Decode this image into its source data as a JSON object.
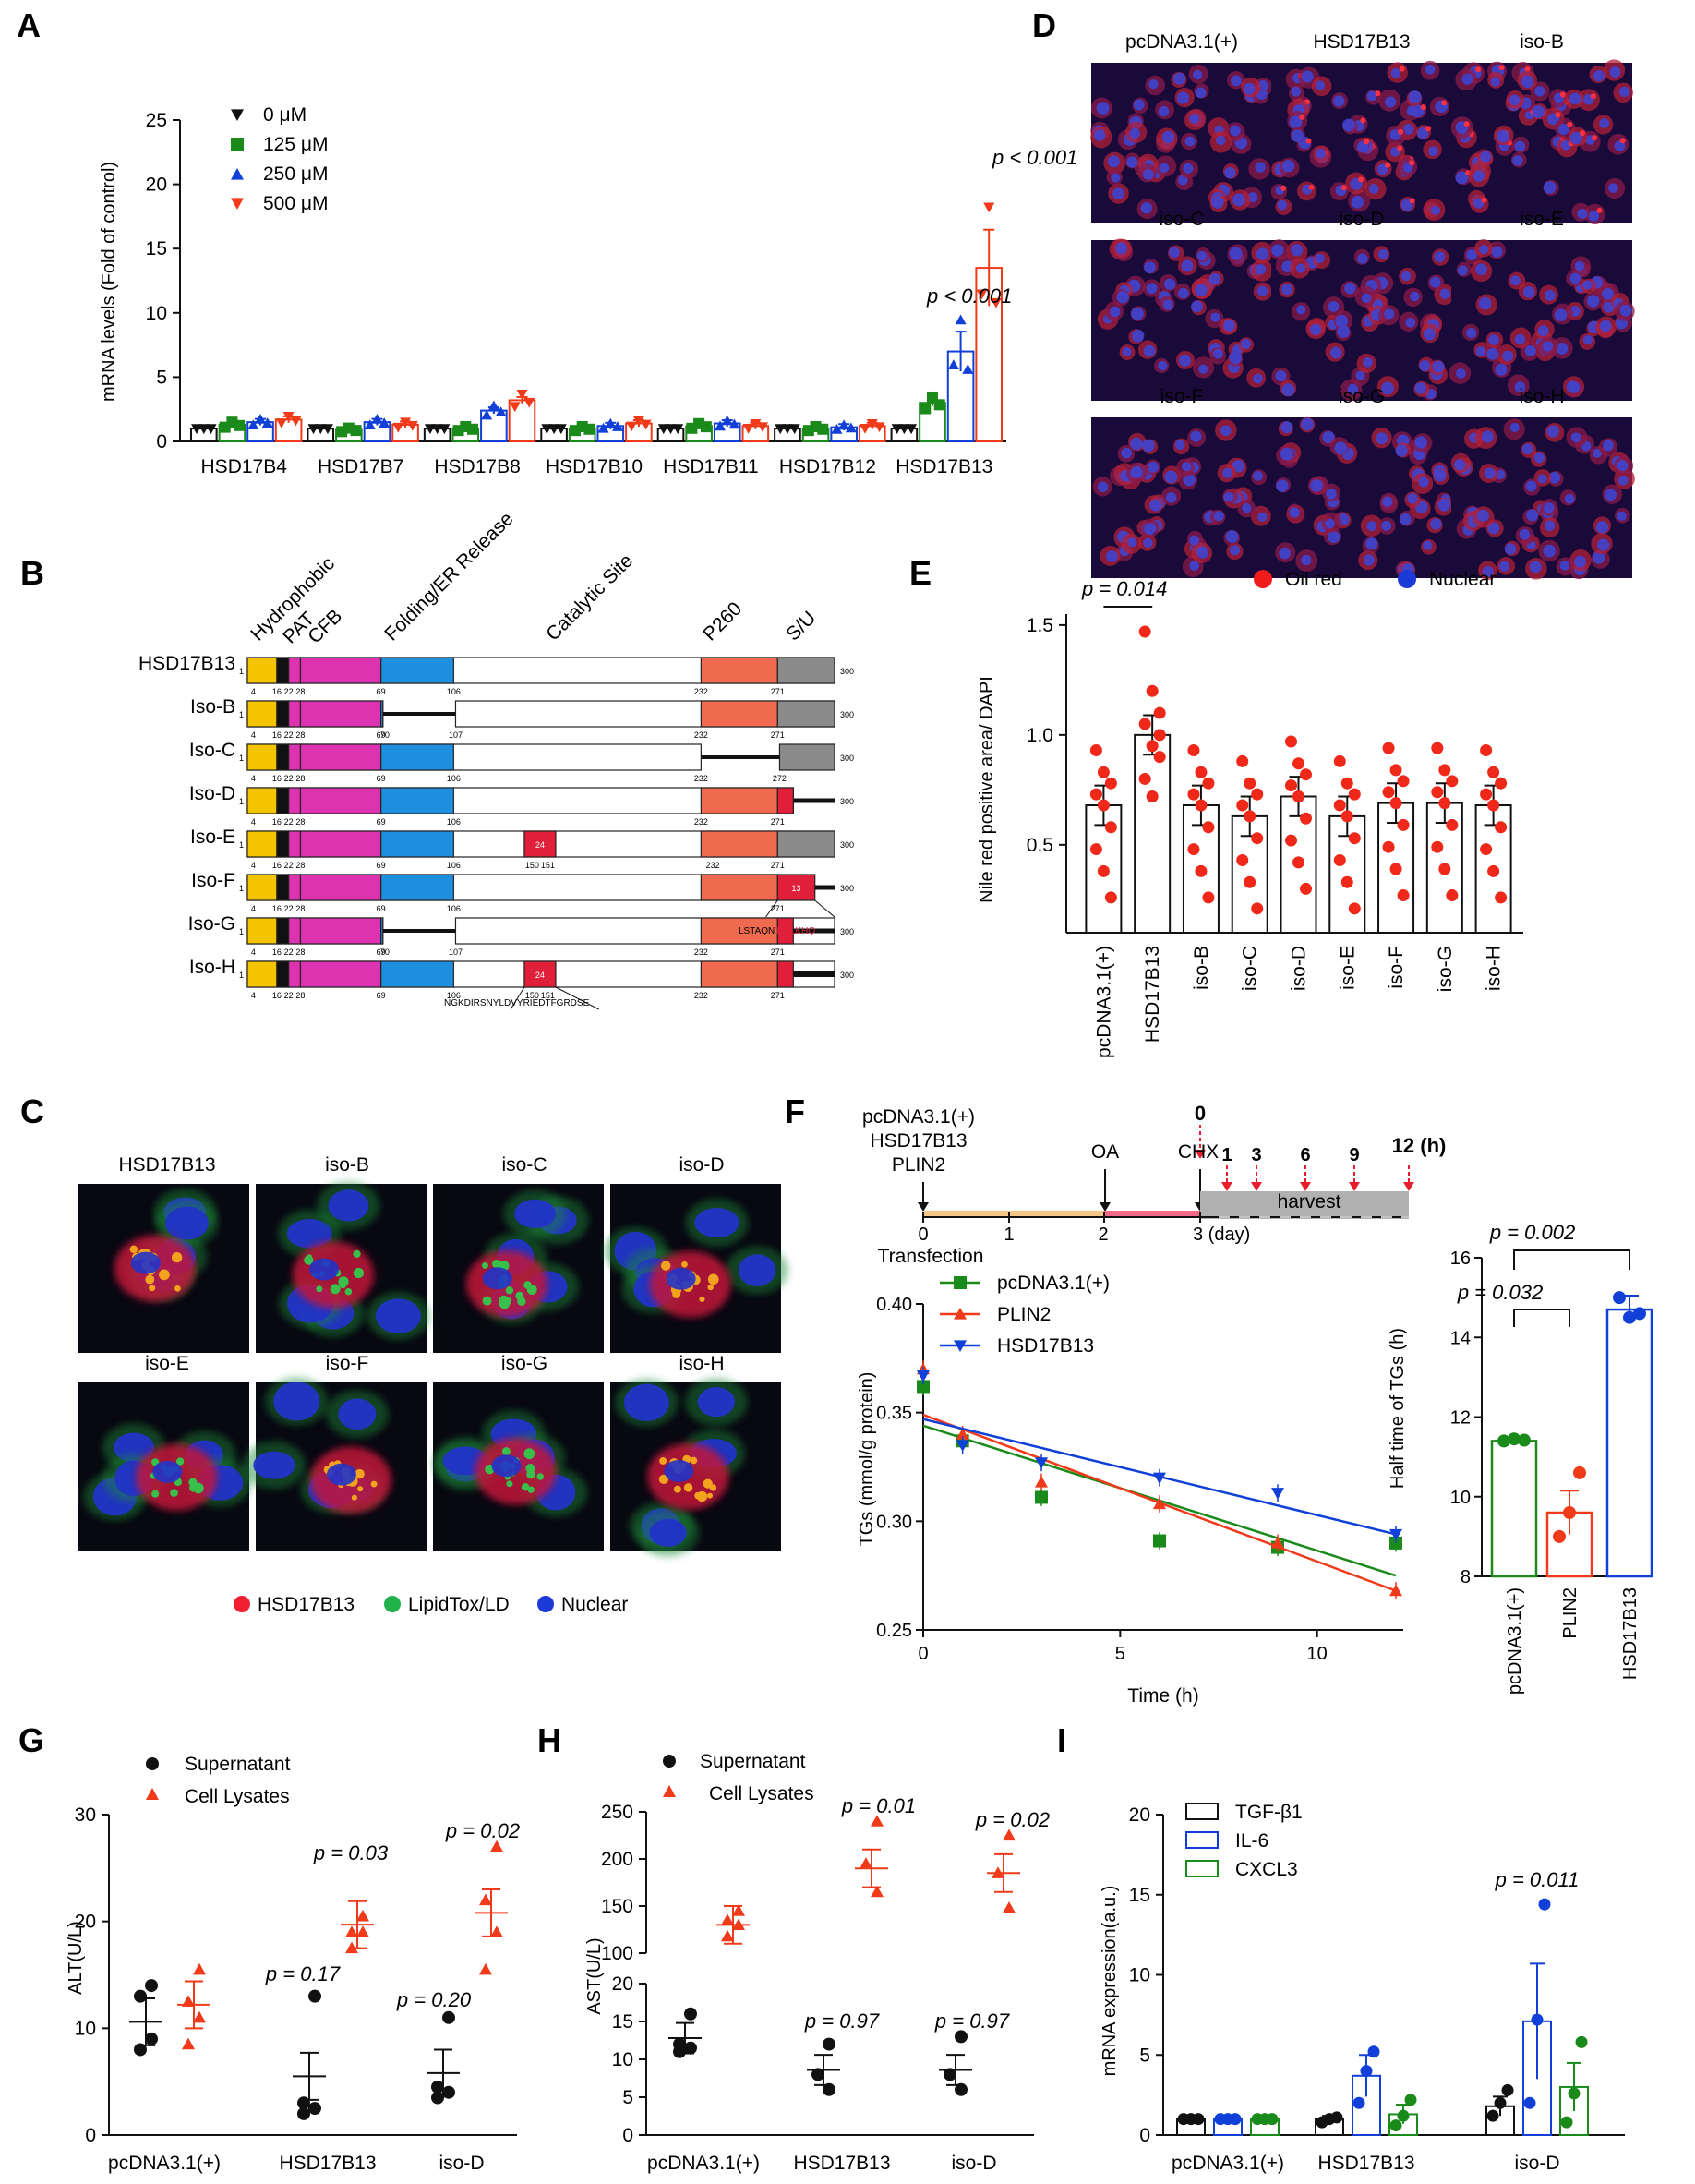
{
  "panel_letters": [
    "A",
    "B",
    "C",
    "D",
    "E",
    "F",
    "G",
    "H",
    "I"
  ],
  "colors": {
    "black": "#111111",
    "green": "#1a8a1a",
    "blue": "#1040d8",
    "red": "#f03a1a",
    "micro_bg": "#12061e",
    "cell_red": "#c0243a",
    "cell_blue": "#2336c8",
    "lipid_green": "#27b24a",
    "orange": "#f39a1e"
  },
  "panelA": {
    "chart_data": {
      "type": "bar",
      "ylabel": "mRNA levels (Fold of control)",
      "ylim": [
        0,
        25
      ],
      "yticks": [
        "0",
        "5",
        "10",
        "15",
        "20",
        "25"
      ],
      "categories": [
        "HSD17B4",
        "HSD17B7",
        "HSD17B8",
        "HSD17B10",
        "HSD17B11",
        "HSD17B12",
        "HSD17B13"
      ],
      "series": [
        {
          "name": "0 μM",
          "values": [
            1,
            1,
            1,
            1,
            1,
            1,
            1
          ]
        },
        {
          "name": "125 μM",
          "values": [
            1.3,
            0.9,
            1.0,
            1.0,
            1.2,
            1.0,
            3.0
          ]
        },
        {
          "name": "250 μM",
          "values": [
            1.5,
            1.5,
            2.4,
            1.2,
            1.4,
            1.1,
            7.0
          ]
        },
        {
          "name": "500 μM",
          "values": [
            1.7,
            1.3,
            3.2,
            1.4,
            1.2,
            1.2,
            13.5
          ]
        }
      ],
      "annotations": [
        "p < 0.001",
        "p < 0.001"
      ]
    }
  },
  "panelB": {
    "header": [
      "Hydrophobic",
      "PAT",
      "CFB",
      "Folding/ER Release",
      "Catalytic Site",
      "P260",
      "S/U"
    ],
    "rows": [
      {
        "name": "HSD17B13",
        "nums": [
          "4",
          "16",
          "22",
          "28",
          "69",
          "106",
          "232",
          "271",
          "300"
        ]
      },
      {
        "name": "Iso-B",
        "nums": [
          "4",
          "16",
          "22",
          "28",
          "69",
          "70",
          "107",
          "232",
          "271",
          "300"
        ]
      },
      {
        "name": "Iso-C",
        "nums": [
          "4",
          "16",
          "22",
          "28",
          "69",
          "106",
          "232",
          "272",
          "300"
        ]
      },
      {
        "name": "Iso-D",
        "nums": [
          "4",
          "16",
          "22",
          "28",
          "69",
          "106",
          "232",
          "271",
          "300"
        ]
      },
      {
        "name": "Iso-E",
        "nums": [
          "4",
          "16",
          "22",
          "28",
          "69",
          "106",
          "150",
          "151",
          "232",
          "271",
          "300"
        ]
      },
      {
        "name": "Iso-F",
        "nums": [
          "4",
          "16",
          "22",
          "28",
          "69",
          "106",
          "271",
          "300"
        ]
      },
      {
        "name": "Iso-G",
        "nums": [
          "4",
          "16",
          "22",
          "28",
          "69",
          "70",
          "107",
          "232",
          "271",
          "300"
        ]
      },
      {
        "name": "Iso-H",
        "nums": [
          "4",
          "16",
          "22",
          "28",
          "69",
          "106",
          "150",
          "151",
          "232",
          "271",
          "300"
        ]
      }
    ],
    "isoF_seq_black": "LSTAQN",
    "isoF_seq_red": "TQILKHQ",
    "isoH_seq": "NGKDIRSNYLDVYRIEDTFGRDSE",
    "box_e": "24",
    "box_f": "13",
    "one": "1"
  },
  "panelC": {
    "images_top": [
      "HSD17B13",
      "iso-B",
      "iso-C",
      "iso-D"
    ],
    "images_bottom": [
      "iso-E",
      "iso-F",
      "iso-G",
      "iso-H"
    ],
    "legend": [
      "HSD17B13",
      "LipidTox/LD",
      "Nuclear"
    ]
  },
  "panelD": {
    "images": [
      "pcDNA3.1(+)",
      "HSD17B13",
      "iso-B",
      "iso-C",
      "iso-D",
      "iso-E",
      "iso-F",
      "iso-G",
      "iso-H"
    ],
    "legend": [
      "Oil red",
      "Nuclear"
    ]
  },
  "panelE": {
    "chart_data": {
      "type": "bar",
      "ylabel": "Nile red positive area/ DAPI",
      "ylim": [
        0.1,
        1.55
      ],
      "yticks": [
        "0.5",
        "1.0",
        "1.5"
      ],
      "categories": [
        "pcDNA3.1(+)",
        "HSD17B13",
        "iso-B",
        "iso-C",
        "iso-D",
        "iso-E",
        "iso-F",
        "iso-G",
        "iso-H"
      ],
      "values": [
        0.68,
        1.0,
        0.68,
        0.63,
        0.72,
        0.63,
        0.69,
        0.69,
        0.68
      ],
      "annotation": "p = 0.014"
    }
  },
  "panelF": {
    "timeline": {
      "transfections": [
        "pcDNA3.1(+)",
        "HSD17B13",
        "PLIN2"
      ],
      "labels": {
        "oa": "OA",
        "chx": "CHX",
        "zero": "0",
        "harvest": "harvest",
        "transfection": "Transfection",
        "day": "3 (day)",
        "unit": "12 (h)"
      },
      "day_ticks": [
        "0",
        "1",
        "2"
      ],
      "harvest_times": [
        "1",
        "3",
        "6",
        "9"
      ]
    },
    "chart_data": [
      {
        "type": "line",
        "xlabel": "Time (h)",
        "ylabel": "TGs (mmol/g protein)",
        "xlim": [
          0,
          12
        ],
        "ylim": [
          0.25,
          0.4
        ],
        "xticks": [
          "0",
          "5",
          "10"
        ],
        "yticks": [
          "0.25",
          "0.30",
          "0.35",
          "0.40"
        ],
        "series": [
          {
            "name": "pcDNA3.1(+)",
            "x": [
              0,
              1,
              3,
              6,
              9,
              12
            ],
            "y": [
              0.362,
              0.337,
              0.311,
              0.291,
              0.288,
              0.29
            ]
          },
          {
            "name": "PLIN2",
            "x": [
              0,
              1,
              3,
              6,
              9,
              12
            ],
            "y": [
              0.37,
              0.34,
              0.318,
              0.308,
              0.29,
              0.268
            ]
          },
          {
            "name": "HSD17B13",
            "x": [
              0,
              1,
              3,
              6,
              9,
              12
            ],
            "y": [
              0.367,
              0.335,
              0.327,
              0.32,
              0.313,
              0.294
            ]
          }
        ]
      },
      {
        "type": "bar",
        "ylabel": "Half time of TGs (h)",
        "ylim": [
          8,
          16
        ],
        "yticks": [
          "8",
          "10",
          "12",
          "14",
          "16"
        ],
        "categories": [
          "pcDNA3.1(+)",
          "PLIN2",
          "HSD17B13"
        ],
        "values": [
          11.4,
          9.6,
          14.7
        ],
        "annotations": [
          "p = 0.032",
          "p = 0.002"
        ]
      }
    ]
  },
  "panelG": {
    "chart_data": {
      "type": "scatter",
      "ylabel": "ALT(U/L)",
      "ylim": [
        0,
        30
      ],
      "yticks": [
        "0",
        "10",
        "20",
        "30"
      ],
      "categories": [
        "pcDNA3.1(+)",
        "HSD17B13",
        "iso-D"
      ],
      "series": [
        {
          "name": "Supernatant",
          "means": [
            10.6,
            5.5,
            5.8
          ]
        },
        {
          "name": "Cell Lysates",
          "means": [
            12.2,
            19.7,
            20.8
          ]
        }
      ],
      "annotations": [
        "p = 0.03",
        "p = 0.02",
        "p = 0.17",
        "p = 0.20"
      ]
    }
  },
  "panelH": {
    "chart_data": {
      "type": "scatter",
      "ylabel": "AST(U/L)",
      "broken_axis": true,
      "yticks_lower": [
        "0",
        "5",
        "10",
        "15",
        "20"
      ],
      "yticks_upper": [
        "100",
        "150",
        "200",
        "250"
      ],
      "categories": [
        "pcDNA3.1(+)",
        "HSD17B13",
        "iso-D"
      ],
      "series": [
        {
          "name": "Supernatant",
          "means": [
            12.8,
            8.6,
            8.6
          ]
        },
        {
          "name": "Cell Lysates",
          "means": [
            130,
            190,
            185
          ]
        }
      ],
      "annotations": [
        "p = 0.01",
        "p = 0.02",
        "p = 0.97",
        "p = 0.97"
      ]
    }
  },
  "panelI": {
    "chart_data": {
      "type": "bar",
      "ylabel": "mRNA expression(a.u.)",
      "ylim": [
        0,
        20
      ],
      "yticks": [
        "0",
        "5",
        "10",
        "15",
        "20"
      ],
      "categories": [
        "pcDNA3.1(+)",
        "HSD17B13",
        "iso-D"
      ],
      "series": [
        {
          "name": "TGF-β1",
          "values": [
            1.0,
            1.0,
            1.8
          ]
        },
        {
          "name": "IL-6",
          "values": [
            1.0,
            3.7,
            7.1
          ]
        },
        {
          "name": "CXCL3",
          "values": [
            1.0,
            1.3,
            3.0
          ]
        }
      ],
      "annotation": "p = 0.011"
    }
  }
}
